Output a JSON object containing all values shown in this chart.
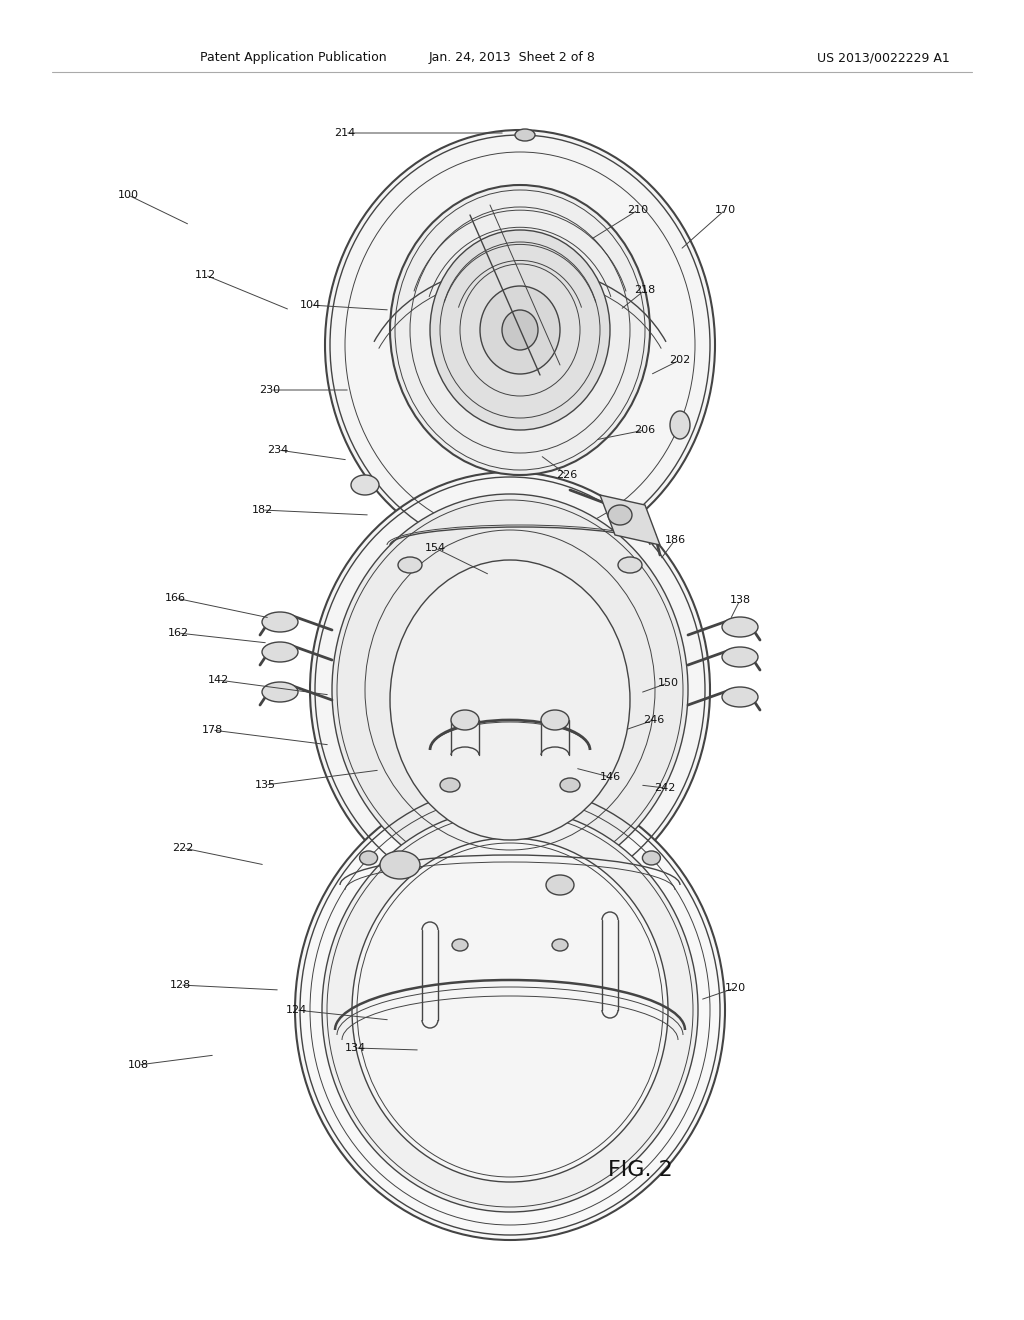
{
  "title_left": "Patent Application Publication",
  "title_center": "Jan. 24, 2013  Sheet 2 of 8",
  "title_right": "US 2013/0022229 A1",
  "fig_label": "FIG. 2",
  "background": "#ffffff",
  "lc": "#444444",
  "tc": "#111111"
}
